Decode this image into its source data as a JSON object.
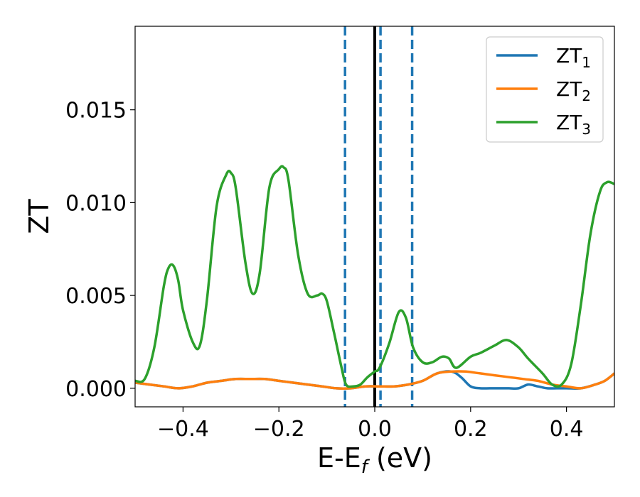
{
  "chart_data": {
    "type": "line",
    "title": "",
    "xlabel": "E-E",
    "xlabel_subscript": "f",
    "xlabel_unit": " (eV)",
    "ylabel": "ZT",
    "xlim": [
      -0.5,
      0.5
    ],
    "ylim": [
      -0.001,
      0.0195
    ],
    "grid": false,
    "legend_position": "top-right",
    "xticks": [
      -0.4,
      -0.2,
      0.0,
      0.2,
      0.4
    ],
    "xtick_labels": [
      "−0.4",
      "−0.2",
      "0.0",
      "0.2",
      "0.4"
    ],
    "yticks": [
      0.0,
      0.005,
      0.01,
      0.015
    ],
    "ytick_labels": [
      "0.000",
      "0.005",
      "0.010",
      "0.015"
    ],
    "vlines": [
      {
        "x": 0.0,
        "style": "solid",
        "color": "#000000"
      },
      {
        "x": -0.062,
        "style": "dashed",
        "color": "#1f77b4"
      },
      {
        "x": 0.012,
        "style": "dashed",
        "color": "#1f77b4"
      },
      {
        "x": 0.078,
        "style": "dashed",
        "color": "#1f77b4"
      }
    ],
    "series": [
      {
        "name": "ZT",
        "name_sub": "1",
        "color": "#1f77b4",
        "x": [
          -0.5,
          -0.47,
          -0.44,
          -0.41,
          -0.38,
          -0.35,
          -0.32,
          -0.29,
          -0.26,
          -0.23,
          -0.2,
          -0.17,
          -0.14,
          -0.11,
          -0.08,
          -0.05,
          -0.02,
          0.01,
          0.04,
          0.07,
          0.1,
          0.13,
          0.16,
          0.18,
          0.2,
          0.22,
          0.24,
          0.26,
          0.28,
          0.3,
          0.32,
          0.34,
          0.36,
          0.38,
          0.4,
          0.43,
          0.46,
          0.48,
          0.5
        ],
        "y": [
          0.0003,
          0.0002,
          0.0001,
          0.0,
          0.0001,
          0.0003,
          0.0004,
          0.0005,
          0.0005,
          0.0005,
          0.0004,
          0.0003,
          0.0002,
          0.0001,
          0.0,
          0.0,
          0.0001,
          0.0001,
          0.0001,
          0.0002,
          0.0004,
          0.0008,
          0.0009,
          0.0006,
          0.0001,
          0.0,
          0.0,
          0.0,
          0.0,
          0.0,
          0.0002,
          0.0001,
          0.0,
          0.0,
          0.0,
          0.0,
          0.0002,
          0.0004,
          0.0008
        ]
      },
      {
        "name": "ZT",
        "name_sub": "2",
        "color": "#ff7f0e",
        "x": [
          -0.5,
          -0.47,
          -0.44,
          -0.41,
          -0.38,
          -0.35,
          -0.32,
          -0.29,
          -0.26,
          -0.23,
          -0.2,
          -0.17,
          -0.14,
          -0.11,
          -0.08,
          -0.05,
          -0.02,
          0.01,
          0.04,
          0.07,
          0.1,
          0.13,
          0.16,
          0.19,
          0.22,
          0.25,
          0.28,
          0.31,
          0.34,
          0.37,
          0.4,
          0.43,
          0.46,
          0.48,
          0.5
        ],
        "y": [
          0.0003,
          0.0002,
          0.0001,
          0.0,
          0.0001,
          0.0003,
          0.0004,
          0.0005,
          0.0005,
          0.0005,
          0.0004,
          0.0003,
          0.0002,
          0.0001,
          0.0,
          0.0,
          0.0001,
          0.0001,
          0.0001,
          0.0002,
          0.0004,
          0.0008,
          0.0009,
          0.0009,
          0.0008,
          0.0007,
          0.0006,
          0.0005,
          0.0004,
          0.0002,
          0.0001,
          0.0,
          0.0002,
          0.0004,
          0.0008
        ]
      },
      {
        "name": "ZT",
        "name_sub": "3",
        "color": "#2ca02c",
        "x": [
          -0.5,
          -0.48,
          -0.46,
          -0.44,
          -0.43,
          -0.42,
          -0.41,
          -0.4,
          -0.38,
          -0.365,
          -0.35,
          -0.33,
          -0.31,
          -0.3,
          -0.29,
          -0.27,
          -0.255,
          -0.24,
          -0.22,
          -0.2,
          -0.19,
          -0.18,
          -0.16,
          -0.14,
          -0.12,
          -0.11,
          -0.1,
          -0.085,
          -0.07,
          -0.06,
          -0.045,
          -0.03,
          -0.015,
          0.0,
          0.01,
          0.03,
          0.05,
          0.065,
          0.08,
          0.1,
          0.12,
          0.14,
          0.155,
          0.17,
          0.2,
          0.22,
          0.25,
          0.275,
          0.3,
          0.32,
          0.35,
          0.37,
          0.39,
          0.41,
          0.43,
          0.45,
          0.47,
          0.485,
          0.5
        ],
        "y": [
          0.0004,
          0.0005,
          0.0022,
          0.0055,
          0.0065,
          0.0066,
          0.0058,
          0.0042,
          0.0025,
          0.0023,
          0.0048,
          0.0098,
          0.0115,
          0.0116,
          0.0108,
          0.0068,
          0.0051,
          0.0062,
          0.0108,
          0.0118,
          0.0119,
          0.0112,
          0.0072,
          0.0051,
          0.005,
          0.0051,
          0.0047,
          0.003,
          0.0012,
          0.0002,
          0.0001,
          0.0002,
          0.0006,
          0.0009,
          0.0011,
          0.0024,
          0.0041,
          0.0038,
          0.0022,
          0.0014,
          0.0014,
          0.0017,
          0.0016,
          0.0011,
          0.0017,
          0.0019,
          0.0023,
          0.0026,
          0.0022,
          0.0016,
          0.0008,
          0.0002,
          0.0002,
          0.0013,
          0.0045,
          0.0083,
          0.0106,
          0.0111,
          0.011
        ]
      }
    ]
  }
}
